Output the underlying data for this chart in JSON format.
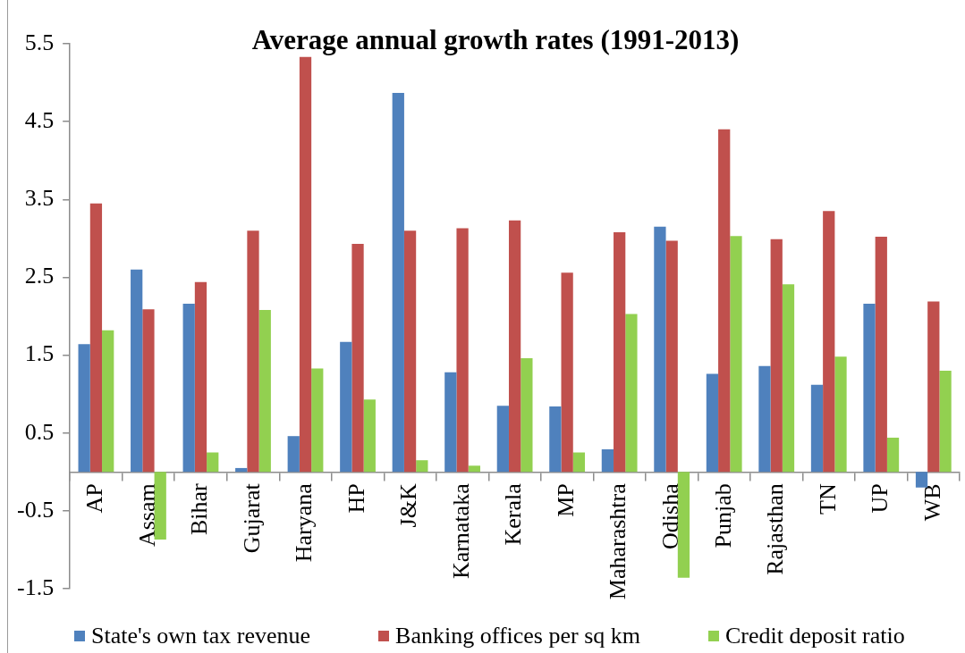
{
  "chart_data": {
    "type": "bar",
    "title": "Average annual growth rates (1991-2013)",
    "categories": [
      "AP",
      "Assam",
      "Bihar",
      "Gujarat",
      "Haryana",
      "HP",
      "J&K",
      "Karnataka",
      "Kerala",
      "MP",
      "Maharashtra",
      "Odisha",
      "Punjab",
      "Rajasthan",
      "TN",
      "UP",
      "WB"
    ],
    "series": [
      {
        "name": "State's own tax revenue",
        "color": "#4f81bd",
        "values": [
          1.64,
          2.6,
          2.16,
          0.05,
          0.46,
          1.67,
          4.87,
          1.28,
          0.85,
          0.84,
          0.29,
          3.15,
          1.26,
          1.36,
          1.12,
          2.16,
          -0.2
        ]
      },
      {
        "name": "Banking offices per sq km",
        "color": "#c0504d",
        "values": [
          3.45,
          2.09,
          2.44,
          3.1,
          5.33,
          2.93,
          3.1,
          3.13,
          3.23,
          2.56,
          3.08,
          2.97,
          4.4,
          2.99,
          3.35,
          3.02,
          2.19
        ]
      },
      {
        "name": "Credit deposit ratio",
        "color": "#92d050",
        "values": [
          1.82,
          -0.87,
          0.25,
          2.08,
          1.33,
          0.93,
          0.15,
          0.08,
          1.46,
          0.25,
          2.03,
          -1.36,
          3.03,
          2.41,
          1.48,
          0.44,
          1.3
        ]
      }
    ],
    "ylim": [
      -1.5,
      5.5
    ],
    "yticks": [
      -1.5,
      -0.5,
      0.5,
      1.5,
      2.5,
      3.5,
      4.5,
      5.5
    ],
    "legend": "bottom"
  }
}
